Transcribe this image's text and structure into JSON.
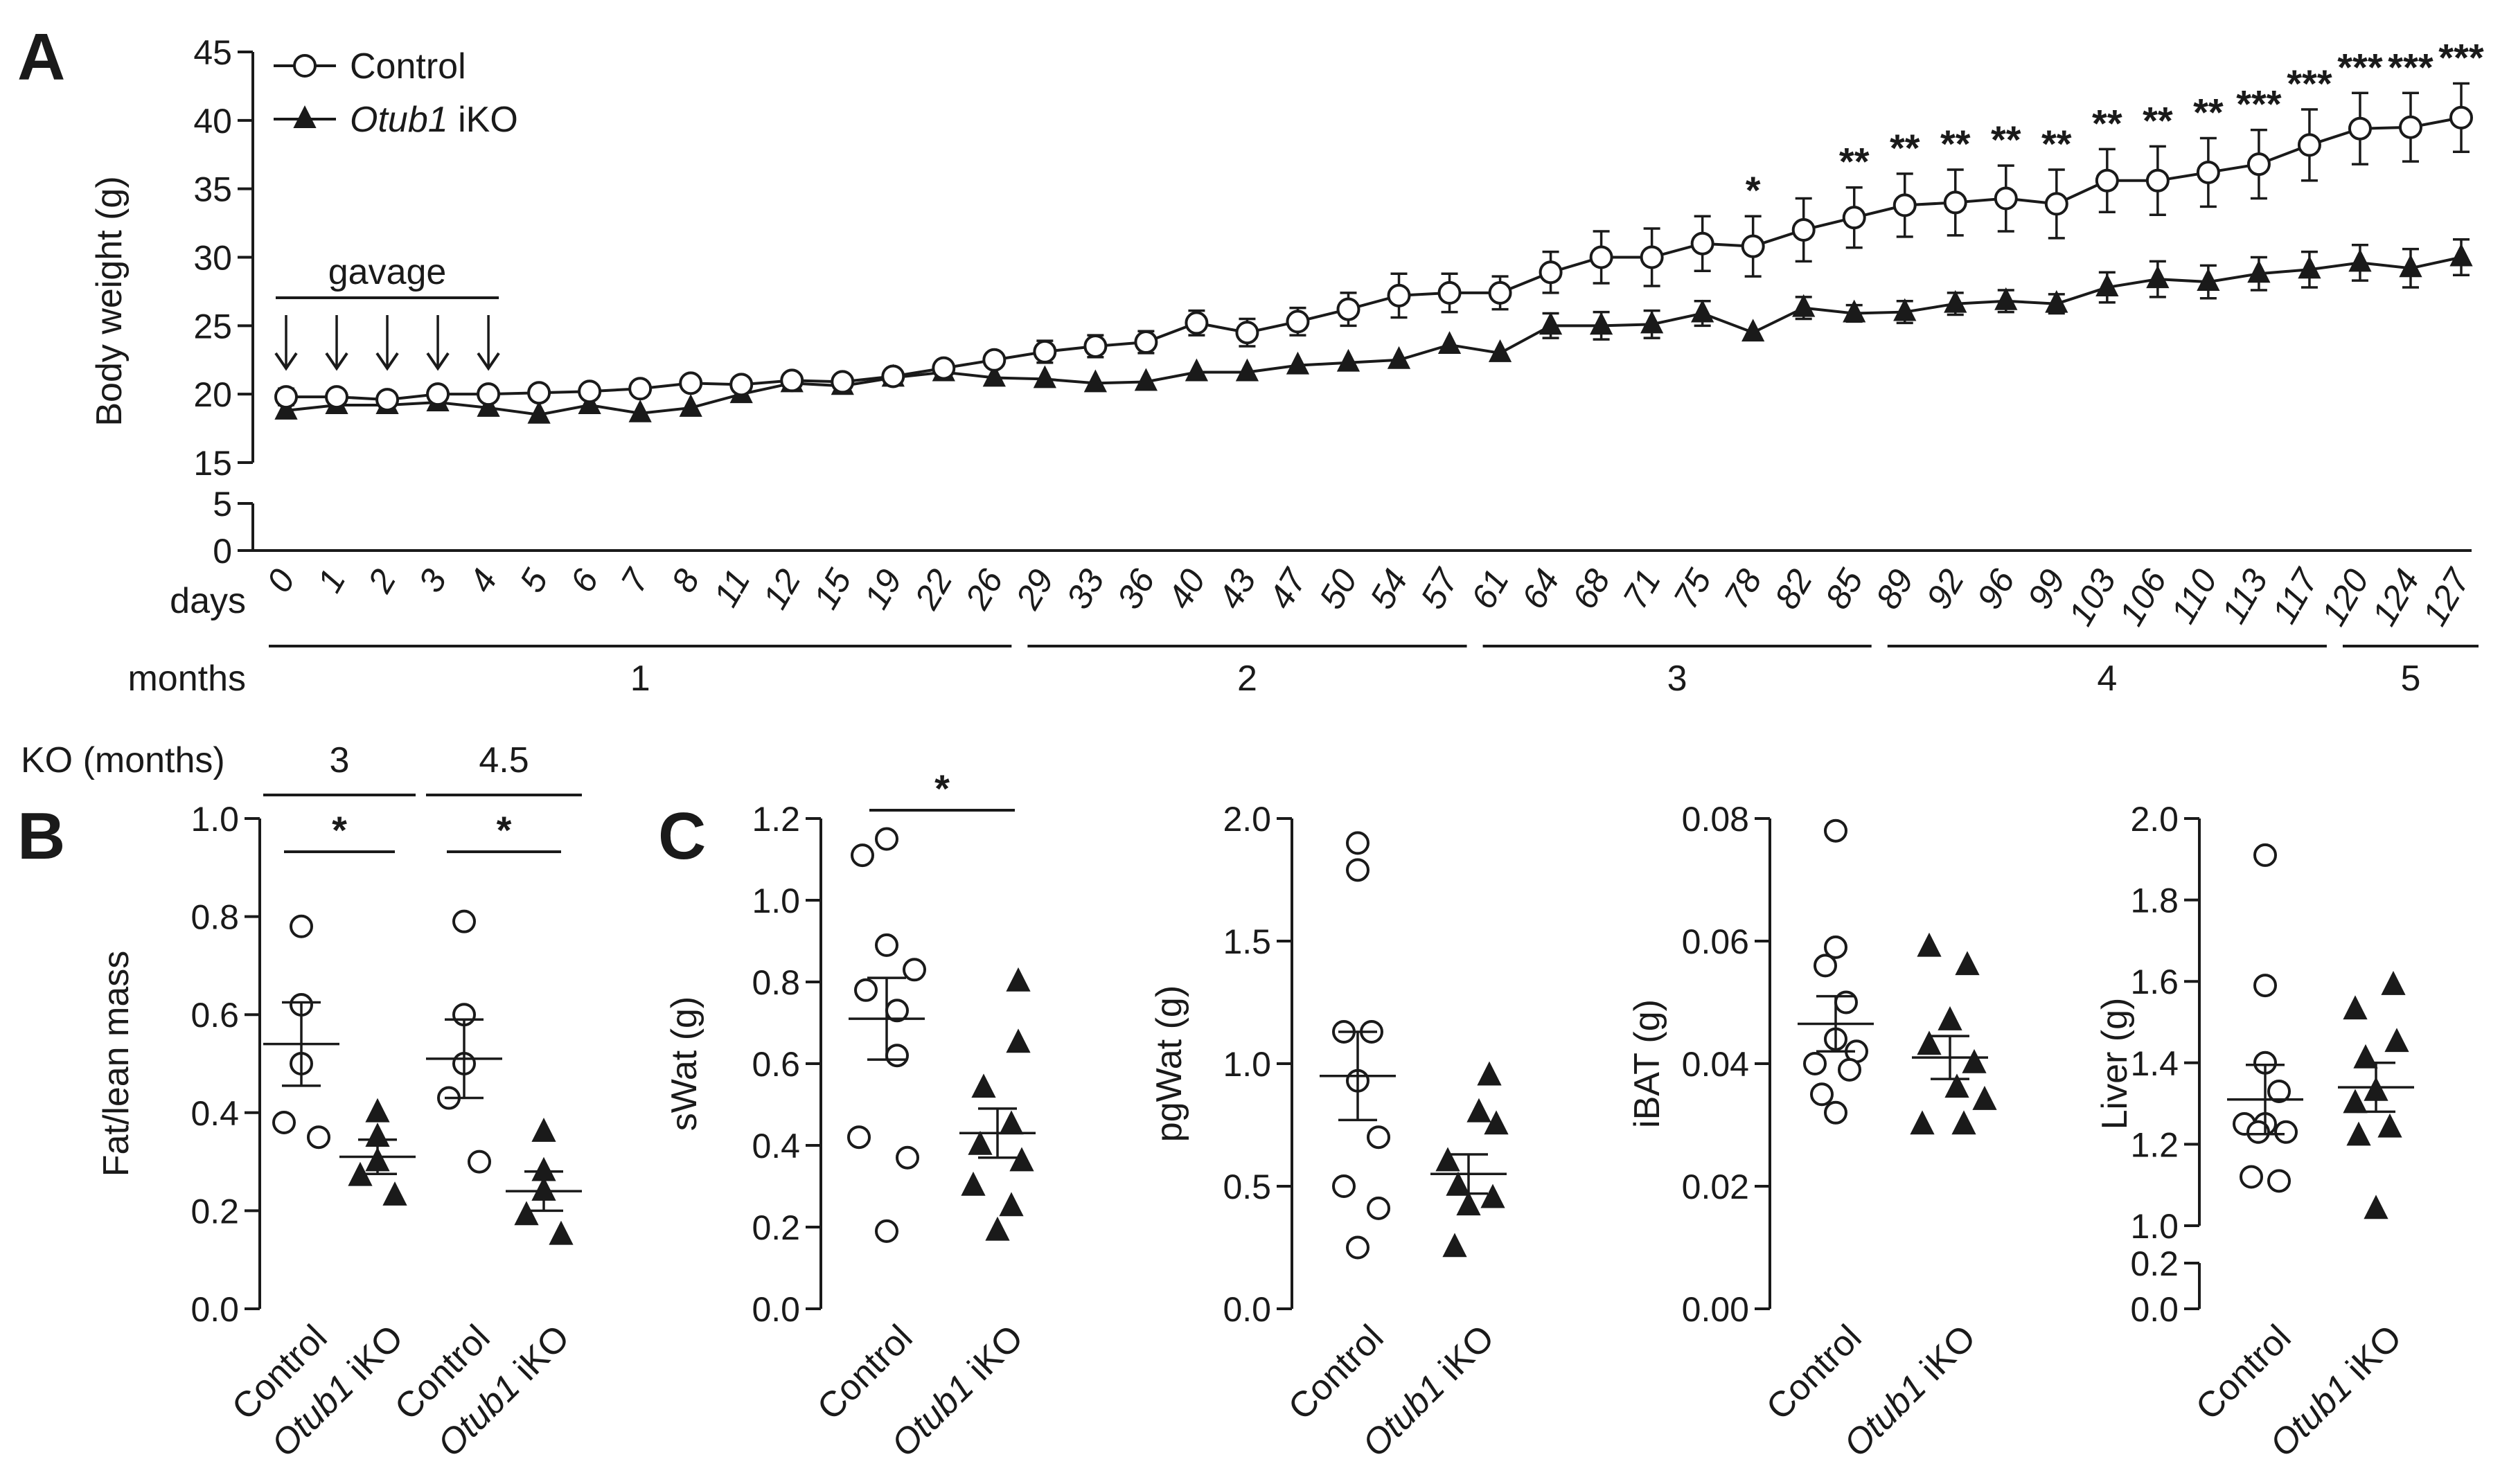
{
  "chart_data": [
    {
      "panel": "A",
      "type": "line",
      "ylabel": "Body weight (g)",
      "yticks": [
        0,
        5,
        15,
        20,
        25,
        30,
        35,
        40,
        45
      ],
      "ylim": [
        0,
        45
      ],
      "xlabel_days": "days",
      "xlabel_months": "months",
      "x": [
        "0",
        "1",
        "2",
        "3",
        "4",
        "5",
        "6",
        "7",
        "8",
        "11",
        "12",
        "15",
        "19",
        "22",
        "26",
        "29",
        "33",
        "36",
        "40",
        "43",
        "47",
        "50",
        "54",
        "57",
        "61",
        "64",
        "68",
        "71",
        "75",
        "78",
        "82",
        "85",
        "89",
        "92",
        "96",
        "99",
        "103",
        "106",
        "110",
        "113",
        "117",
        "120",
        "124",
        "127"
      ],
      "months": [
        {
          "label": "1",
          "from": 0,
          "to": 14
        },
        {
          "label": "2",
          "from": 15,
          "to": 23
        },
        {
          "label": "3",
          "from": 24,
          "to": 31
        },
        {
          "label": "4",
          "from": 32,
          "to": 40
        },
        {
          "label": "5",
          "from": 41,
          "to": 43
        }
      ],
      "annotation": {
        "text": "gavage",
        "from": 0,
        "to": 4
      },
      "series": [
        {
          "name": "Control",
          "marker": "open-circle",
          "values": [
            19.8,
            19.8,
            19.6,
            20.0,
            20.0,
            20.1,
            20.2,
            20.4,
            20.8,
            20.7,
            21.0,
            20.9,
            21.3,
            21.9,
            22.5,
            23.1,
            23.5,
            23.8,
            25.2,
            24.5,
            25.3,
            26.2,
            27.2,
            27.4,
            27.4,
            28.9,
            30.0,
            30.0,
            31.0,
            30.8,
            32.0,
            32.9,
            33.8,
            34.0,
            34.3,
            33.9,
            35.6,
            35.6,
            36.2,
            36.8,
            38.2,
            39.4,
            39.5,
            40.2
          ],
          "errors": [
            0.6,
            0.4,
            0.4,
            0.4,
            0.4,
            0.4,
            0.4,
            0.4,
            0.4,
            0.4,
            0.4,
            0.4,
            0.4,
            0.4,
            0.5,
            0.8,
            0.8,
            0.8,
            0.9,
            1.0,
            1.0,
            1.2,
            1.6,
            1.4,
            1.2,
            1.5,
            1.9,
            2.1,
            2.0,
            2.2,
            2.3,
            2.2,
            2.3,
            2.4,
            2.4,
            2.5,
            2.3,
            2.5,
            2.5,
            2.5,
            2.6,
            2.6,
            2.5,
            2.5
          ]
        },
        {
          "name": "Otub1 iKO",
          "marker": "filled-triangle",
          "values": [
            18.8,
            19.2,
            19.2,
            19.4,
            19.0,
            18.5,
            19.2,
            18.6,
            19.0,
            20.0,
            20.8,
            20.6,
            21.2,
            21.6,
            21.2,
            21.1,
            20.8,
            20.9,
            21.6,
            21.6,
            22.1,
            22.3,
            22.5,
            23.6,
            23.0,
            25.0,
            25.0,
            25.1,
            25.9,
            24.5,
            26.3,
            25.9,
            26.0,
            26.6,
            26.8,
            26.6,
            27.8,
            28.4,
            28.2,
            28.8,
            29.1,
            29.6,
            29.2,
            30.0
          ],
          "errors": [
            0.4,
            0.3,
            0.3,
            0.3,
            0.3,
            0.3,
            0.3,
            0.3,
            0.3,
            0.3,
            0.3,
            0.3,
            0.3,
            0.3,
            0.3,
            0.3,
            0.3,
            0.3,
            0.3,
            0.3,
            0.3,
            0.3,
            0.3,
            0.3,
            0.3,
            0.9,
            1.0,
            1.0,
            0.9,
            0.4,
            0.8,
            0.6,
            0.8,
            0.8,
            0.8,
            0.7,
            1.1,
            1.3,
            1.2,
            1.2,
            1.3,
            1.3,
            1.4,
            1.3
          ]
        }
      ],
      "significance": [
        {
          "index": 29,
          "label": "*"
        },
        {
          "index": 31,
          "label": "**"
        },
        {
          "index": 32,
          "label": "**"
        },
        {
          "index": 33,
          "label": "**"
        },
        {
          "index": 34,
          "label": "**"
        },
        {
          "index": 35,
          "label": "**"
        },
        {
          "index": 36,
          "label": "**"
        },
        {
          "index": 37,
          "label": "**"
        },
        {
          "index": 38,
          "label": "**"
        },
        {
          "index": 39,
          "label": "***"
        },
        {
          "index": 40,
          "label": "***"
        },
        {
          "index": 41,
          "label": "***"
        },
        {
          "index": 42,
          "label": "***"
        },
        {
          "index": 43,
          "label": "***"
        }
      ]
    },
    {
      "panel": "B",
      "type": "scatter",
      "ylabel": "Fat/lean mass",
      "ylim": [
        0,
        1.0
      ],
      "yticks": [
        "0.0",
        "0.2",
        "0.4",
        "0.6",
        "0.8",
        "1.0"
      ],
      "groups_label": "KO (months)",
      "categories": [
        "Control",
        "Otub1 iKO",
        "Control",
        "Otub1 iKO"
      ],
      "group_headers": [
        {
          "label": "3",
          "cols": [
            0,
            1
          ]
        },
        {
          "label": "4.5",
          "cols": [
            2,
            3
          ]
        }
      ],
      "points": [
        [
          0.78,
          0.62,
          0.5,
          0.38,
          0.35
        ],
        [
          0.4,
          0.35,
          0.3,
          0.27,
          0.23
        ],
        [
          0.79,
          0.6,
          0.5,
          0.43,
          0.3
        ],
        [
          0.36,
          0.28,
          0.24,
          0.19,
          0.15
        ]
      ],
      "means": [
        0.54,
        0.31,
        0.51,
        0.24
      ],
      "sems": [
        0.085,
        0.035,
        0.08,
        0.04
      ],
      "significance": [
        {
          "cols": [
            0,
            1
          ],
          "label": "*"
        },
        {
          "cols": [
            2,
            3
          ],
          "label": "*"
        }
      ]
    },
    {
      "panel": "C",
      "type": "scatter",
      "ylabel": "sWat (g)",
      "ylim": [
        0,
        1.2
      ],
      "yticks": [
        "0.0",
        "0.2",
        "0.4",
        "0.6",
        "0.8",
        "1.0",
        "1.2"
      ],
      "categories": [
        "Control",
        "Otub1 iKO"
      ],
      "points": [
        [
          1.15,
          1.11,
          0.89,
          0.83,
          0.78,
          0.73,
          0.62,
          0.42,
          0.37,
          0.19
        ],
        [
          0.8,
          0.65,
          0.54,
          0.45,
          0.4,
          0.36,
          0.3,
          0.25,
          0.19
        ]
      ],
      "means": [
        0.71,
        0.43
      ],
      "sems": [
        0.1,
        0.06
      ],
      "significance": [
        {
          "cols": [
            0,
            1
          ],
          "label": "*"
        }
      ]
    },
    {
      "panel": "C",
      "type": "scatter",
      "ylabel": "pgWat (g)",
      "ylim": [
        0,
        2.0
      ],
      "yticks": [
        "0.0",
        "0.5",
        "1.0",
        "1.5",
        "2.0"
      ],
      "categories": [
        "Control",
        "Otub1 iKO"
      ],
      "points": [
        [
          1.9,
          1.79,
          1.13,
          1.13,
          0.93,
          0.7,
          0.5,
          0.41,
          0.25
        ],
        [
          0.95,
          0.8,
          0.75,
          0.6,
          0.5,
          0.45,
          0.42,
          0.25
        ]
      ],
      "means": [
        0.95,
        0.55
      ],
      "sems": [
        0.18,
        0.08
      ],
      "significance": []
    },
    {
      "panel": "C",
      "type": "scatter",
      "ylabel": "iBAT (g)",
      "ylim": [
        0,
        0.08
      ],
      "yticks": [
        "0.00",
        "0.02",
        "0.04",
        "0.06",
        "0.08"
      ],
      "categories": [
        "Control",
        "Otub1 iKO"
      ],
      "points": [
        [
          0.078,
          0.059,
          0.056,
          0.05,
          0.044,
          0.042,
          0.04,
          0.039,
          0.035,
          0.032
        ],
        [
          0.059,
          0.056,
          0.047,
          0.043,
          0.04,
          0.036,
          0.034,
          0.03,
          0.03
        ]
      ],
      "means": [
        0.0465,
        0.041
      ],
      "sems": [
        0.0045,
        0.0035
      ],
      "significance": []
    },
    {
      "panel": "C",
      "type": "scatter",
      "ylabel": "Liver (g)",
      "ylim": [
        0,
        2.0
      ],
      "yticks": [
        "0.0",
        "0.2",
        "1.0",
        "1.2",
        "1.4",
        "1.6",
        "1.8",
        "2.0"
      ],
      "axis_break": [
        0.2,
        1.0
      ],
      "categories": [
        "Control",
        "Otub1 iKO"
      ],
      "points": [
        [
          1.91,
          1.59,
          1.4,
          1.33,
          1.25,
          1.25,
          1.23,
          1.23,
          1.12,
          1.11
        ],
        [
          1.59,
          1.53,
          1.45,
          1.41,
          1.33,
          1.3,
          1.24,
          1.22,
          1.04
        ]
      ],
      "means": [
        1.31,
        1.34
      ],
      "sems": [
        0.085,
        0.06
      ],
      "significance": []
    }
  ]
}
